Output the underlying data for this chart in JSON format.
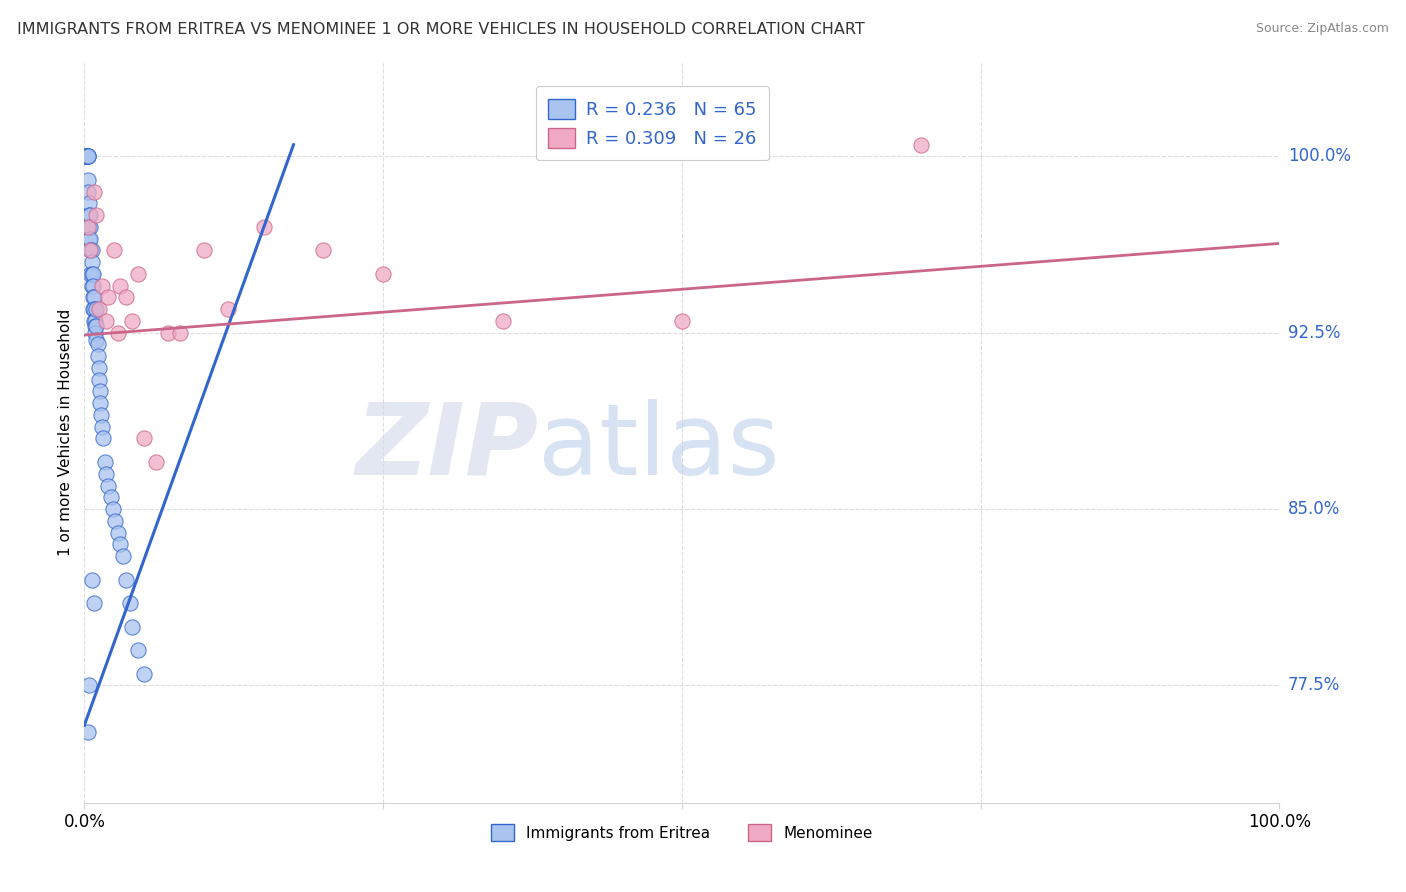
{
  "title": "IMMIGRANTS FROM ERITREA VS MENOMINEE 1 OR MORE VEHICLES IN HOUSEHOLD CORRELATION CHART",
  "source": "Source: ZipAtlas.com",
  "ylabel": "1 or more Vehicles in Household",
  "xmin": 0.0,
  "xmax": 1.0,
  "ymin": 0.725,
  "ymax": 1.04,
  "ytick_labels": [
    "77.5%",
    "85.0%",
    "92.5%",
    "100.0%"
  ],
  "ytick_values": [
    0.775,
    0.85,
    0.925,
    1.0
  ],
  "legend_label1": "Immigrants from Eritrea",
  "legend_label2": "Menominee",
  "r1": "0.236",
  "n1": "65",
  "r2": "0.309",
  "n2": "26",
  "color1": "#aac4f0",
  "color2": "#f0aac4",
  "line_color1": "#3366cc",
  "line_color2": "#cc6688",
  "watermark_zip_color": "#c8d8f0",
  "watermark_atlas_color": "#a8c0e8",
  "trend1_x0": 0.0,
  "trend1_x1": 0.175,
  "trend1_y0": 0.758,
  "trend1_y1": 1.005,
  "trend2_x0": 0.0,
  "trend2_x1": 1.0,
  "trend2_y0": 0.924,
  "trend2_y1": 0.963,
  "blue_dots_x": [
    0.001,
    0.001,
    0.001,
    0.002,
    0.002,
    0.002,
    0.002,
    0.003,
    0.003,
    0.003,
    0.003,
    0.003,
    0.004,
    0.004,
    0.004,
    0.004,
    0.005,
    0.005,
    0.005,
    0.005,
    0.005,
    0.006,
    0.006,
    0.006,
    0.006,
    0.007,
    0.007,
    0.007,
    0.007,
    0.008,
    0.008,
    0.008,
    0.009,
    0.009,
    0.009,
    0.01,
    0.01,
    0.01,
    0.011,
    0.011,
    0.012,
    0.012,
    0.013,
    0.013,
    0.014,
    0.015,
    0.016,
    0.017,
    0.018,
    0.02,
    0.022,
    0.024,
    0.026,
    0.028,
    0.03,
    0.032,
    0.035,
    0.038,
    0.04,
    0.045,
    0.05,
    0.008,
    0.006,
    0.004,
    0.003
  ],
  "blue_dots_y": [
    1.0,
    1.0,
    1.0,
    1.0,
    1.0,
    1.0,
    1.0,
    1.0,
    1.0,
    1.0,
    0.99,
    0.985,
    0.98,
    0.975,
    0.97,
    0.965,
    0.975,
    0.97,
    0.965,
    0.96,
    0.95,
    0.96,
    0.955,
    0.95,
    0.945,
    0.95,
    0.945,
    0.94,
    0.935,
    0.94,
    0.935,
    0.93,
    0.93,
    0.928,
    0.925,
    0.935,
    0.928,
    0.922,
    0.92,
    0.915,
    0.91,
    0.905,
    0.9,
    0.895,
    0.89,
    0.885,
    0.88,
    0.87,
    0.865,
    0.86,
    0.855,
    0.85,
    0.845,
    0.84,
    0.835,
    0.83,
    0.82,
    0.81,
    0.8,
    0.79,
    0.78,
    0.81,
    0.82,
    0.775,
    0.755
  ],
  "pink_dots_x": [
    0.003,
    0.005,
    0.008,
    0.01,
    0.012,
    0.015,
    0.018,
    0.02,
    0.025,
    0.028,
    0.03,
    0.035,
    0.04,
    0.045,
    0.05,
    0.06,
    0.07,
    0.08,
    0.1,
    0.12,
    0.15,
    0.2,
    0.25,
    0.35,
    0.5,
    0.7
  ],
  "pink_dots_y": [
    0.97,
    0.96,
    0.985,
    0.975,
    0.935,
    0.945,
    0.93,
    0.94,
    0.96,
    0.925,
    0.945,
    0.94,
    0.93,
    0.95,
    0.88,
    0.87,
    0.925,
    0.925,
    0.96,
    0.935,
    0.97,
    0.96,
    0.95,
    0.93,
    0.93,
    1.005
  ]
}
